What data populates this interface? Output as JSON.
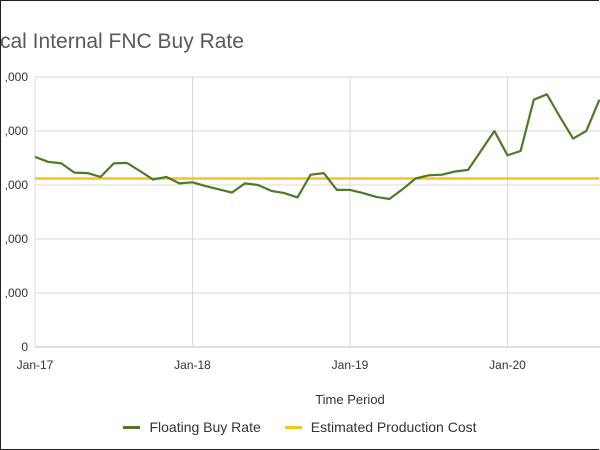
{
  "chart_data": {
    "type": "line",
    "title": "cal Internal FNC Buy Rate",
    "xlabel": "Time Period",
    "ylabel": "",
    "x_ticks": [
      "Jan-17",
      "Jan-18",
      "Jan-19",
      "Jan-20"
    ],
    "y_ticks": [
      ",000",
      ",000",
      ",000",
      ",000",
      ",000",
      "0"
    ],
    "y_tick_values": [
      5,
      4,
      3,
      2,
      1,
      0
    ],
    "ylim": [
      0,
      5
    ],
    "xlim": [
      0,
      43
    ],
    "grid": true,
    "legend_position": "bottom",
    "series": [
      {
        "name": "Floating Buy Rate",
        "color": "#4e7a28",
        "x": [
          0,
          1,
          2,
          3,
          4,
          5,
          6,
          7,
          8,
          9,
          10,
          11,
          12,
          13,
          14,
          15,
          16,
          17,
          18,
          19,
          20,
          21,
          22,
          23,
          24,
          25,
          26,
          27,
          28,
          29,
          30,
          31,
          32,
          33,
          34,
          35,
          36,
          37,
          38,
          39,
          40,
          41,
          42,
          43
        ],
        "values": [
          3.52,
          3.43,
          3.4,
          3.23,
          3.22,
          3.15,
          3.4,
          3.41,
          3.26,
          3.1,
          3.15,
          3.03,
          3.05,
          2.98,
          2.92,
          2.86,
          3.03,
          3.0,
          2.89,
          2.85,
          2.77,
          3.19,
          3.22,
          2.91,
          2.91,
          2.85,
          2.78,
          2.74,
          2.92,
          3.12,
          3.18,
          3.19,
          3.25,
          3.28,
          3.64,
          4.0,
          3.55,
          3.63,
          4.58,
          4.68,
          4.26,
          3.86,
          4.0,
          4.58
        ]
      },
      {
        "name": "Estimated Production Cost",
        "color": "#f2c61f",
        "x": [
          0,
          43
        ],
        "values": [
          3.12,
          3.12
        ]
      }
    ]
  }
}
